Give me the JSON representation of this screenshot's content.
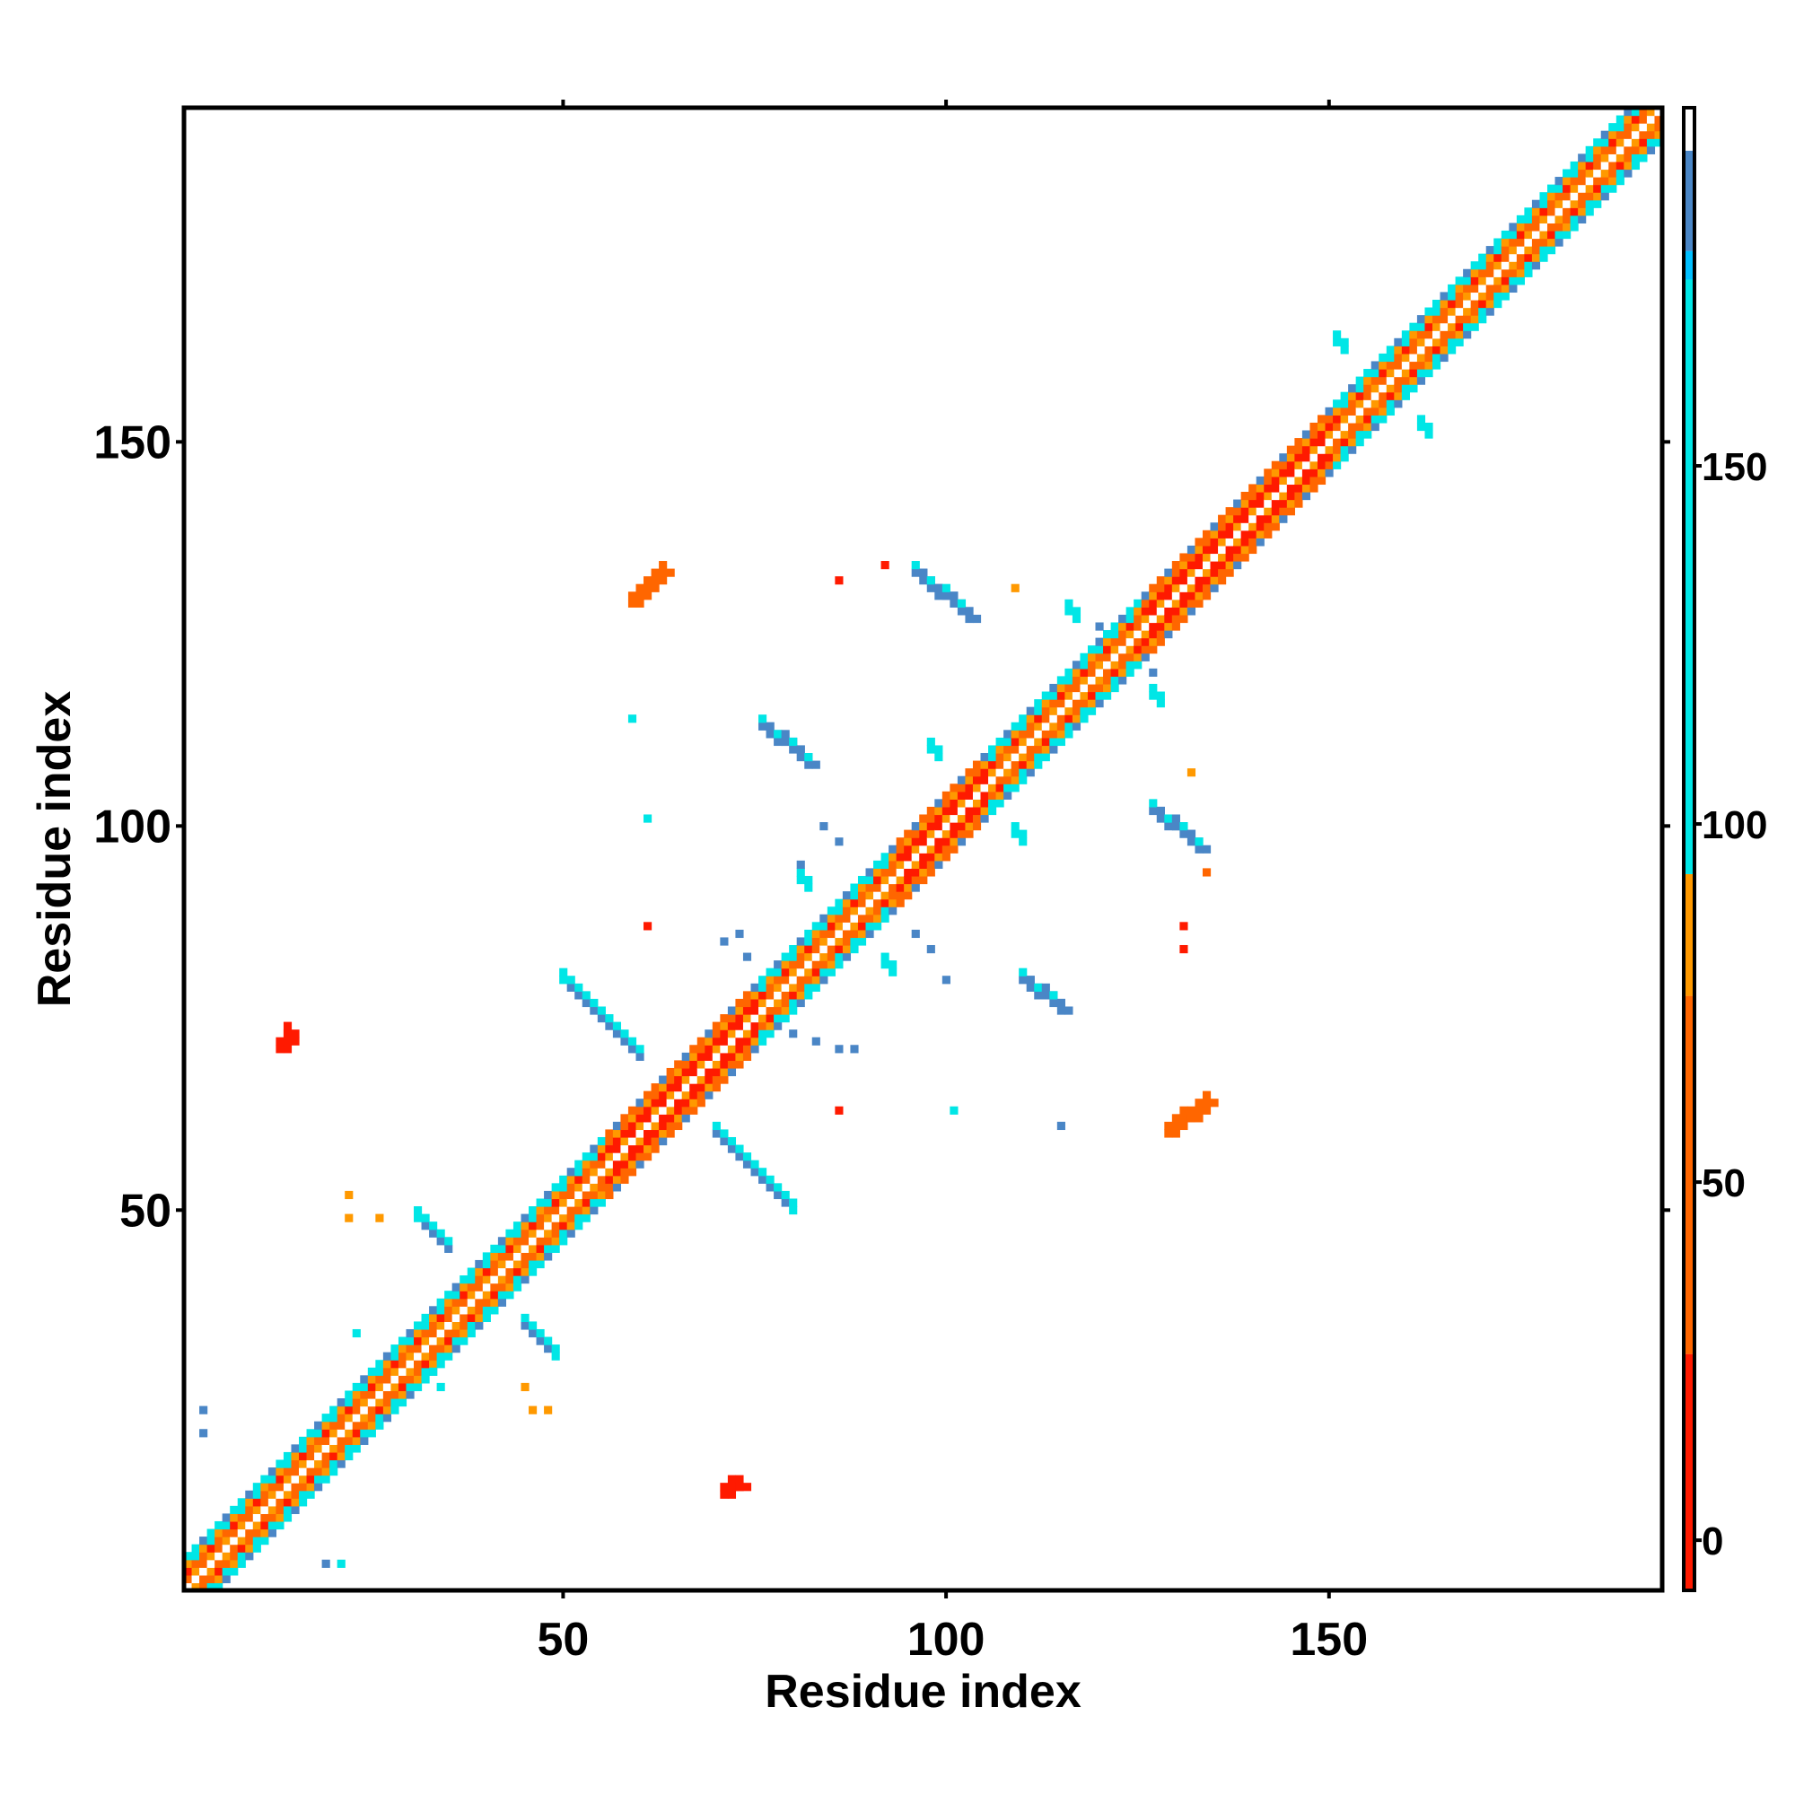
{
  "chart_data": {
    "type": "heatmap",
    "title": "",
    "xlabel": "Residue index",
    "ylabel": "Residue index",
    "xlim": [
      1,
      193
    ],
    "ylim": [
      1,
      193
    ],
    "xticks": [
      50,
      100,
      150
    ],
    "yticks": [
      50,
      100,
      150
    ],
    "colorbar": {
      "ticks": [
        0,
        50,
        100,
        150
      ],
      "range": [
        -7,
        193
      ],
      "bands": [
        {
          "from": -7,
          "to": 26,
          "color": "#ff1a00"
        },
        {
          "from": 26,
          "to": 76,
          "color": "#ff6600"
        },
        {
          "from": 76,
          "to": 93,
          "color": "#ff9900"
        },
        {
          "from": 93,
          "to": 176,
          "color": "#00e6e6"
        },
        {
          "from": 176,
          "to": 180,
          "color": "#00bfff"
        },
        {
          "from": 180,
          "to": 194,
          "color": "#4a86c6"
        },
        {
          "from": 194,
          "to": 200,
          "color": "#ffffff"
        }
      ]
    },
    "palette": {
      "red": "#ff1a00",
      "orange": "#ff6600",
      "amber": "#ff9900",
      "cyan": "#00e6e6",
      "blue": "#4a86c6",
      "white": "#ffffff"
    },
    "diagonal_band": {
      "from": 1,
      "to": 193,
      "halfwidth": 4
    },
    "diagonal_segments": [
      {
        "from": 1,
        "to": 40,
        "core": "orange",
        "edge": "cyan"
      },
      {
        "from": 40,
        "to": 55,
        "core": "orange",
        "edge": "cyan"
      },
      {
        "from": 55,
        "to": 75,
        "core": "red",
        "edge": "orange"
      },
      {
        "from": 75,
        "to": 93,
        "core": "orange",
        "edge": "cyan"
      },
      {
        "from": 93,
        "to": 105,
        "core": "red",
        "edge": "orange"
      },
      {
        "from": 105,
        "to": 125,
        "core": "orange",
        "edge": "cyan"
      },
      {
        "from": 125,
        "to": 150,
        "core": "red",
        "edge": "orange"
      },
      {
        "from": 150,
        "to": 193,
        "core": "orange",
        "edge": "cyan"
      }
    ],
    "cross_features": [
      {
        "x": 40,
        "y": 40,
        "length": 9,
        "color": "blue"
      },
      {
        "x": 65,
        "y": 65,
        "length": 15,
        "color": "blue"
      },
      {
        "x": 87,
        "y": 87,
        "length": 6,
        "color": "cyan"
      },
      {
        "x": 104,
        "y": 104,
        "length": 6,
        "color": "cyan"
      },
      {
        "x": 122,
        "y": 122,
        "length": 6,
        "color": "cyan"
      },
      {
        "x": 157,
        "y": 157,
        "length": 6,
        "color": "cyan"
      }
    ],
    "off_diagonal_patches": [
      {
        "x1": 59,
        "y1": 129,
        "x2": 63,
        "y2": 133,
        "color": "orange"
      },
      {
        "x1": 96,
        "y1": 133,
        "x2": 103,
        "y2": 127,
        "color": "blue"
      },
      {
        "x1": 76,
        "y1": 113,
        "x2": 82,
        "y2": 108,
        "color": "blue"
      },
      {
        "x1": 127,
        "y1": 102,
        "x2": 133,
        "y2": 97,
        "color": "blue"
      },
      {
        "x1": 110,
        "y1": 80,
        "x2": 115,
        "y2": 76,
        "color": "blue"
      },
      {
        "x1": 129,
        "y1": 60,
        "x2": 134,
        "y2": 64,
        "color": "orange"
      },
      {
        "x1": 13,
        "y1": 71,
        "x2": 14,
        "y2": 73,
        "color": "red"
      },
      {
        "x1": 71,
        "y1": 13,
        "x2": 73,
        "y2": 14,
        "color": "red"
      }
    ],
    "scattered_points": [
      {
        "x": 109,
        "y": 131,
        "color": "amber"
      },
      {
        "x": 86,
        "y": 132,
        "color": "red"
      },
      {
        "x": 92,
        "y": 134,
        "color": "red"
      },
      {
        "x": 120,
        "y": 126,
        "color": "blue"
      },
      {
        "x": 127,
        "y": 120,
        "color": "blue"
      },
      {
        "x": 59,
        "y": 114,
        "color": "cyan"
      },
      {
        "x": 61,
        "y": 101,
        "color": "cyan"
      },
      {
        "x": 84,
        "y": 100,
        "color": "blue"
      },
      {
        "x": 86,
        "y": 98,
        "color": "blue"
      },
      {
        "x": 81,
        "y": 95,
        "color": "blue"
      },
      {
        "x": 132,
        "y": 107,
        "color": "amber"
      },
      {
        "x": 134,
        "y": 94,
        "color": "orange"
      },
      {
        "x": 131,
        "y": 87,
        "color": "red"
      },
      {
        "x": 131,
        "y": 84,
        "color": "red"
      },
      {
        "x": 61,
        "y": 87,
        "color": "red"
      },
      {
        "x": 71,
        "y": 85,
        "color": "blue"
      },
      {
        "x": 73,
        "y": 86,
        "color": "blue"
      },
      {
        "x": 74,
        "y": 83,
        "color": "blue"
      },
      {
        "x": 96,
        "y": 86,
        "color": "blue"
      },
      {
        "x": 98,
        "y": 84,
        "color": "blue"
      },
      {
        "x": 100,
        "y": 80,
        "color": "blue"
      },
      {
        "x": 80,
        "y": 73,
        "color": "blue"
      },
      {
        "x": 83,
        "y": 72,
        "color": "blue"
      },
      {
        "x": 86,
        "y": 71,
        "color": "blue"
      },
      {
        "x": 88,
        "y": 71,
        "color": "blue"
      },
      {
        "x": 86,
        "y": 63,
        "color": "red"
      },
      {
        "x": 101,
        "y": 63,
        "color": "cyan"
      },
      {
        "x": 115,
        "y": 61,
        "color": "blue"
      },
      {
        "x": 22,
        "y": 52,
        "color": "amber"
      },
      {
        "x": 22,
        "y": 49,
        "color": "amber"
      },
      {
        "x": 26,
        "y": 49,
        "color": "amber"
      },
      {
        "x": 23,
        "y": 34,
        "color": "cyan"
      },
      {
        "x": 33,
        "y": 29,
        "color": "cyan"
      },
      {
        "x": 34,
        "y": 27,
        "color": "cyan"
      },
      {
        "x": 45,
        "y": 27,
        "color": "amber"
      },
      {
        "x": 46,
        "y": 24,
        "color": "amber"
      },
      {
        "x": 48,
        "y": 24,
        "color": "amber"
      },
      {
        "x": 3,
        "y": 24,
        "color": "blue"
      },
      {
        "x": 3,
        "y": 21,
        "color": "blue"
      },
      {
        "x": 19,
        "y": 4,
        "color": "blue"
      },
      {
        "x": 21,
        "y": 4,
        "color": "cyan"
      }
    ]
  }
}
